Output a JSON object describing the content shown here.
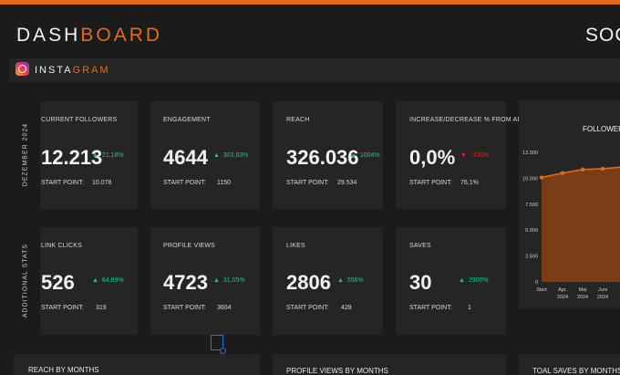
{
  "header": {
    "title_part1": "DASH",
    "title_part2": "BOARD",
    "title_right": "SOCIA"
  },
  "platform": {
    "icon": "instagram-icon",
    "label_part1": "INSTA",
    "label_part2": "GRAM"
  },
  "sections": {
    "period_label": "DEZEMBER 2024",
    "additional_label": "ADDITIONAL STATS"
  },
  "start_point_label": "START POINT:",
  "kpis": [
    {
      "label": "CURRENT FOLLOWERS",
      "value": "12.213",
      "change": "21,18%",
      "direction": "up",
      "start": "10.078"
    },
    {
      "label": "ENGAGEMENT",
      "value": "4644",
      "change": "303,83%",
      "direction": "up",
      "start": "1150"
    },
    {
      "label": "REACH",
      "value": "326.036",
      "change": "1004%",
      "direction": "up",
      "start": "29.534"
    },
    {
      "label": "INCREASE/DECREASE % FROM ADS",
      "value": "0,0%",
      "change": "-100%",
      "direction": "down",
      "start": "76,1%"
    },
    {
      "label": "LINK CLICKS",
      "value": "526",
      "change": "64,89%",
      "direction": "up",
      "start": "319"
    },
    {
      "label": "PROFILE VIEWS",
      "value": "4723",
      "change": "31,05%",
      "direction": "up",
      "start": "3604"
    },
    {
      "label": "LIKES",
      "value": "2806",
      "change": "556%",
      "direction": "up",
      "start": "428"
    },
    {
      "label": "SAVES",
      "value": "30",
      "change": "2900%",
      "direction": "up",
      "start": "1"
    }
  ],
  "colors": {
    "accent": "#e06b1f",
    "up": "#2ec27e",
    "down": "#e5232b",
    "card": "#252525",
    "background": "#1b1b1b"
  },
  "chart_data": {
    "type": "area",
    "title": "FOLLOWERS",
    "categories": [
      "Start",
      "Apr. 2024",
      "Mai 2024",
      "Juni 2024"
    ],
    "series": [
      {
        "values": [
          10078,
          10500,
          10850,
          10920
        ]
      }
    ],
    "yticks": [
      "12.500",
      "10.000",
      "7.500",
      "5.000",
      "2.500",
      "0"
    ],
    "ylim": [
      0,
      12500
    ],
    "xticks": [
      {
        "line1": "Start",
        "line2": ""
      },
      {
        "line1": "Apr.",
        "line2": "2024"
      },
      {
        "line1": "Mai",
        "line2": "2024"
      },
      {
        "line1": "Juni",
        "line2": "2024"
      }
    ],
    "color": "#e06b1f"
  },
  "bottom_panels": [
    {
      "title": "REACH BY MONTHS"
    },
    {
      "title": "PROFILE VIEWS BY MONTHS"
    },
    {
      "title": "TOAL SAVES BY MONTHS"
    }
  ]
}
